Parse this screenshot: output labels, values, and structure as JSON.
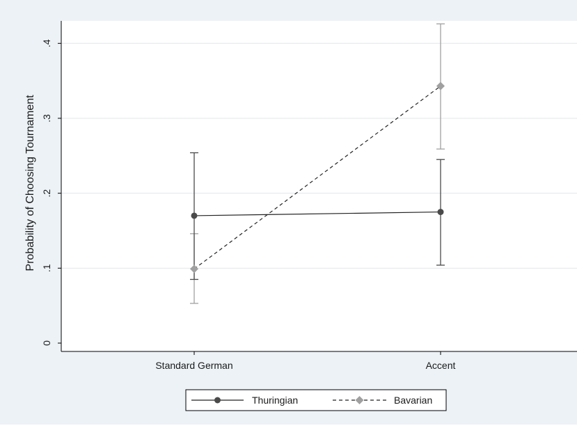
{
  "chart_data": {
    "type": "line",
    "title": "",
    "xlabel": "",
    "ylabel": "Probability of Choosing Tournament",
    "categories": [
      "Standard German",
      "Accent"
    ],
    "ylim": [
      0,
      0.43
    ],
    "yticks": [
      0,
      0.1,
      0.2,
      0.3,
      0.4
    ],
    "ytick_labels": [
      "0",
      ".1",
      ".2",
      ".3",
      ".4"
    ],
    "grid": true,
    "legend_position": "bottom",
    "series": [
      {
        "name": "Thuringian",
        "values": [
          0.17,
          0.175
        ],
        "ci_low": [
          0.085,
          0.104
        ],
        "ci_high": [
          0.254,
          0.245
        ],
        "color": "#4a4a4a",
        "line_style": "solid",
        "marker": "circle"
      },
      {
        "name": "Bavarian",
        "values": [
          0.099,
          0.343
        ],
        "ci_low": [
          0.053,
          0.259
        ],
        "ci_high": [
          0.146,
          0.426
        ],
        "color": "#a0a0a0",
        "line_style": "dashed",
        "marker": "diamond"
      }
    ],
    "colors": {
      "background": "#ecf2f6",
      "plot_area": "#ffffff",
      "grid": "#e2e6e8",
      "axis": "#000000"
    }
  }
}
